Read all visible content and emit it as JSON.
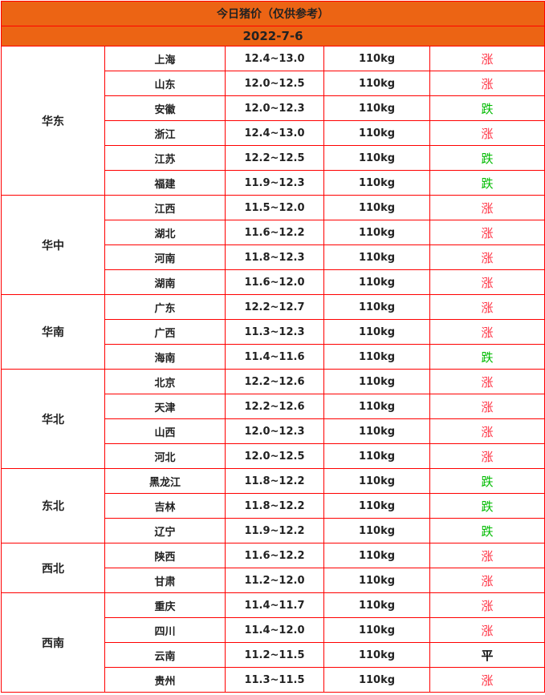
{
  "title": "今日猪价（仅供参考）",
  "date": "2022-7-6",
  "colors": {
    "header_bg": "#ec6414",
    "border": "#ff0000",
    "up": "#ff3344",
    "down": "#00bb00",
    "flat": "#111111"
  },
  "regions": [
    {
      "name": "华东",
      "rows": [
        {
          "province": "上海",
          "price": "12.4~13.0",
          "weight": "110kg",
          "trend": "涨",
          "dir": "up"
        },
        {
          "province": "山东",
          "price": "12.0~12.5",
          "weight": "110kg",
          "trend": "涨",
          "dir": "up"
        },
        {
          "province": "安徽",
          "price": "12.0~12.3",
          "weight": "110kg",
          "trend": "跌",
          "dir": "down"
        },
        {
          "province": "浙江",
          "price": "12.4~13.0",
          "weight": "110kg",
          "trend": "涨",
          "dir": "up"
        },
        {
          "province": "江苏",
          "price": "12.2~12.5",
          "weight": "110kg",
          "trend": "跌",
          "dir": "down"
        },
        {
          "province": "福建",
          "price": "11.9~12.3",
          "weight": "110kg",
          "trend": "跌",
          "dir": "down"
        }
      ]
    },
    {
      "name": "华中",
      "rows": [
        {
          "province": "江西",
          "price": "11.5~12.0",
          "weight": "110kg",
          "trend": "涨",
          "dir": "up"
        },
        {
          "province": "湖北",
          "price": "11.6~12.2",
          "weight": "110kg",
          "trend": "涨",
          "dir": "up"
        },
        {
          "province": "河南",
          "price": "11.8~12.3",
          "weight": "110kg",
          "trend": "涨",
          "dir": "up"
        },
        {
          "province": "湖南",
          "price": "11.6~12.0",
          "weight": "110kg",
          "trend": "涨",
          "dir": "up"
        }
      ]
    },
    {
      "name": "华南",
      "rows": [
        {
          "province": "广东",
          "price": "12.2~12.7",
          "weight": "110kg",
          "trend": "涨",
          "dir": "up"
        },
        {
          "province": "广西",
          "price": "11.3~12.3",
          "weight": "110kg",
          "trend": "涨",
          "dir": "up"
        },
        {
          "province": "海南",
          "price": "11.4~11.6",
          "weight": "110kg",
          "trend": "跌",
          "dir": "down"
        }
      ]
    },
    {
      "name": "华北",
      "rows": [
        {
          "province": "北京",
          "price": "12.2~12.6",
          "weight": "110kg",
          "trend": "涨",
          "dir": "up"
        },
        {
          "province": "天津",
          "price": "12.2~12.6",
          "weight": "110kg",
          "trend": "涨",
          "dir": "up"
        },
        {
          "province": "山西",
          "price": "12.0~12.3",
          "weight": "110kg",
          "trend": "涨",
          "dir": "up"
        },
        {
          "province": "河北",
          "price": "12.0~12.5",
          "weight": "110kg",
          "trend": "涨",
          "dir": "up"
        }
      ]
    },
    {
      "name": "东北",
      "rows": [
        {
          "province": "黑龙江",
          "price": "11.8~12.2",
          "weight": "110kg",
          "trend": "跌",
          "dir": "down"
        },
        {
          "province": "吉林",
          "price": "11.8~12.2",
          "weight": "110kg",
          "trend": "跌",
          "dir": "down"
        },
        {
          "province": "辽宁",
          "price": "11.9~12.2",
          "weight": "110kg",
          "trend": "跌",
          "dir": "down"
        }
      ]
    },
    {
      "name": "西北",
      "rows": [
        {
          "province": "陕西",
          "price": "11.6~12.2",
          "weight": "110kg",
          "trend": "涨",
          "dir": "up"
        },
        {
          "province": "甘肃",
          "price": "11.2~12.0",
          "weight": "110kg",
          "trend": "涨",
          "dir": "up"
        }
      ]
    },
    {
      "name": "西南",
      "rows": [
        {
          "province": "重庆",
          "price": "11.4~11.7",
          "weight": "110kg",
          "trend": "涨",
          "dir": "up"
        },
        {
          "province": "四川",
          "price": "11.4~12.0",
          "weight": "110kg",
          "trend": "涨",
          "dir": "up"
        },
        {
          "province": "云南",
          "price": "11.2~11.5",
          "weight": "110kg",
          "trend": "平",
          "dir": "flat"
        },
        {
          "province": "贵州",
          "price": "11.3~11.5",
          "weight": "110kg",
          "trend": "涨",
          "dir": "up"
        }
      ]
    }
  ]
}
